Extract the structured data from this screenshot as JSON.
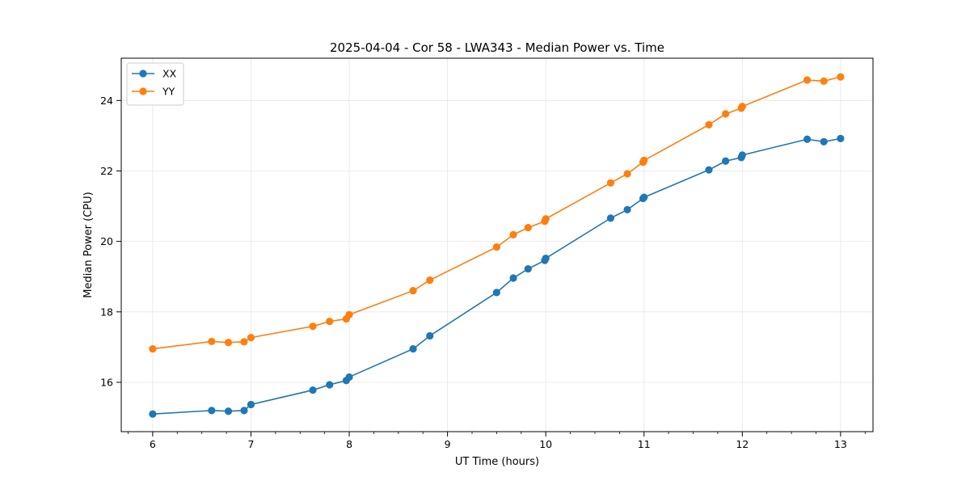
{
  "chart_data": {
    "type": "line",
    "title": "2025-04-04 - Cor 58 - LWA343 - Median Power vs. Time",
    "xlabel": "UT Time (hours)",
    "ylabel": "Median Power (CPU)",
    "xlim": [
      5.68,
      13.33
    ],
    "ylim": [
      14.6,
      25.2
    ],
    "xticks": [
      6,
      7,
      8,
      9,
      10,
      11,
      12,
      13
    ],
    "xtick_labels": [
      "6",
      "7",
      "8",
      "9",
      "10",
      "11",
      "12",
      "13"
    ],
    "x_minor_step": 0.25,
    "yticks": [
      16,
      18,
      20,
      22,
      24
    ],
    "ytick_labels": [
      "16",
      "18",
      "20",
      "22",
      "24"
    ],
    "grid": true,
    "legend_position": "top-left",
    "x": [
      6.0,
      6.6,
      6.77,
      6.93,
      7.0,
      7.63,
      7.8,
      7.97,
      8.0,
      8.65,
      8.82,
      9.5,
      9.67,
      9.82,
      9.99,
      10.0,
      10.66,
      10.83,
      10.99,
      11.0,
      11.66,
      11.83,
      11.99,
      12.0,
      12.66,
      12.83,
      13.0
    ],
    "series": [
      {
        "name": "XX",
        "color": "#1f77b4",
        "values": [
          15.1,
          15.2,
          15.18,
          15.2,
          15.37,
          15.78,
          15.93,
          16.05,
          16.15,
          16.95,
          17.32,
          18.55,
          18.96,
          19.22,
          19.46,
          19.52,
          20.66,
          20.9,
          21.22,
          21.25,
          22.03,
          22.28,
          22.38,
          22.45,
          22.9,
          22.83,
          22.92
        ]
      },
      {
        "name": "YY",
        "color": "#ff7f0e",
        "values": [
          16.95,
          17.16,
          17.13,
          17.15,
          17.27,
          17.59,
          17.73,
          17.8,
          17.92,
          18.6,
          18.9,
          19.84,
          20.19,
          20.39,
          20.57,
          20.64,
          21.66,
          21.92,
          22.25,
          22.3,
          23.31,
          23.62,
          23.78,
          23.83,
          24.58,
          24.55,
          24.67
        ]
      }
    ]
  }
}
